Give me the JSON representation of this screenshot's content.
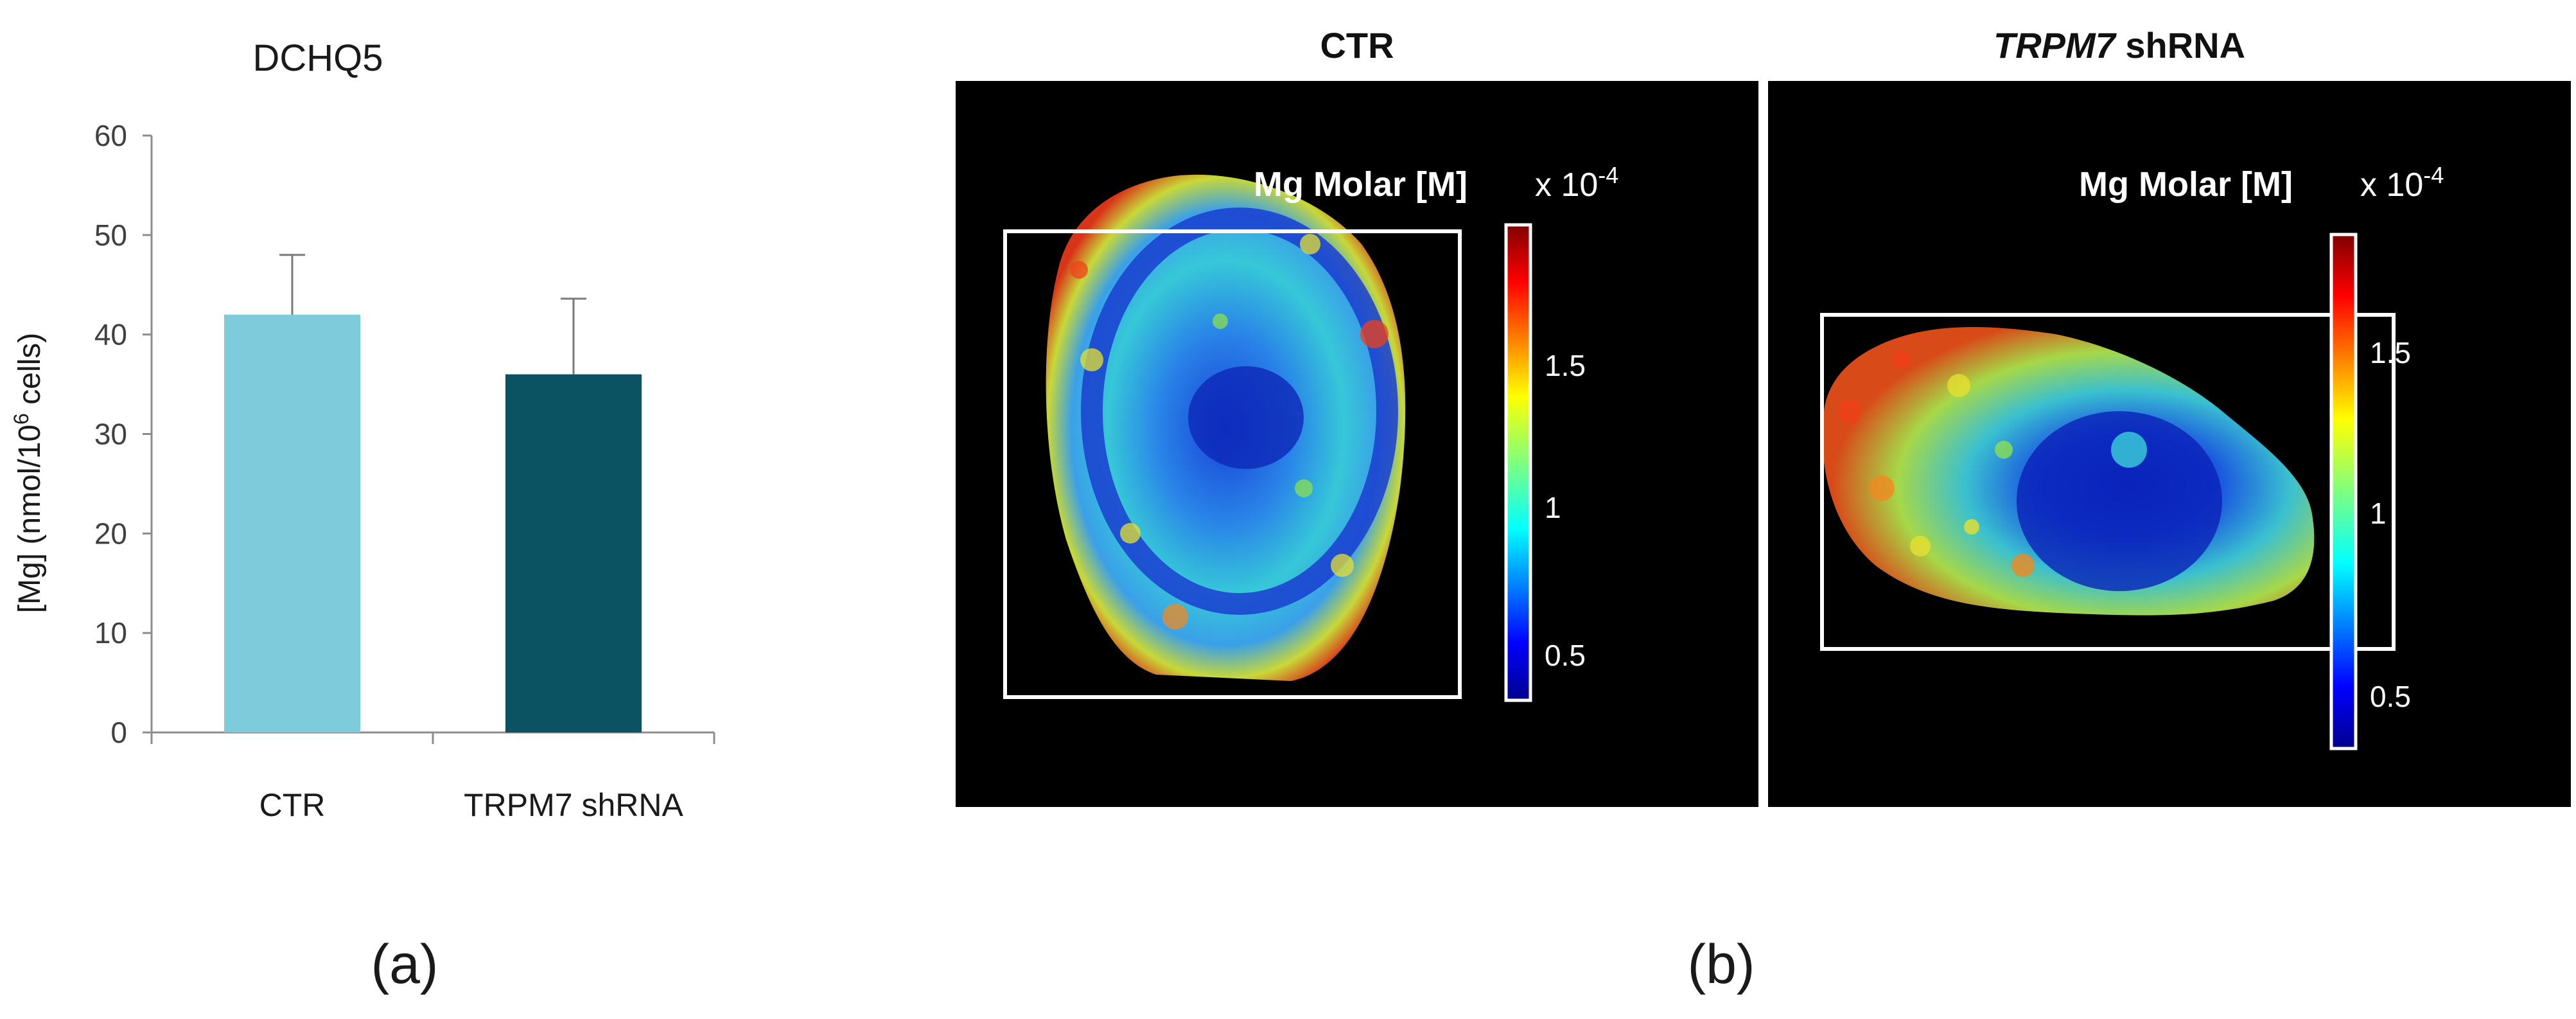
{
  "chart_data": [
    {
      "type": "bar",
      "title": "DCHQ5",
      "ylabel": "[Mg] (nmol/10",
      "ylabel_sup": "6",
      "ylabel_tail": " cells)",
      "categories": [
        "CTR",
        "TRPM7 shRNA"
      ],
      "values": [
        42,
        36
      ],
      "errors": [
        6,
        7.6
      ],
      "colors": [
        "#7ecbdc",
        "#0b5363"
      ],
      "ylim": [
        0,
        60
      ],
      "yticks": [
        0,
        10,
        20,
        30,
        40,
        50,
        60
      ],
      "grid": false,
      "panel_label": "(a)"
    },
    {
      "type": "heatmap",
      "panel_label": "(b)",
      "panels": [
        {
          "title": "CTR",
          "title_italic": "",
          "title_plain": "CTR",
          "colorbar_label": "Mg Molar [M]",
          "scale_prefix": "x 10",
          "scale_exp": "-4",
          "colorbar_ticks": [
            "1.5",
            "1",
            "0.5"
          ]
        },
        {
          "title": "TRPM7 shRNA",
          "title_italic": "TRPM7",
          "title_plain": " shRNA",
          "colorbar_label": "Mg Molar [M]",
          "scale_prefix": "x 10",
          "scale_exp": "-4",
          "colorbar_ticks": [
            "1.5",
            "1",
            "0.5"
          ]
        }
      ]
    }
  ]
}
